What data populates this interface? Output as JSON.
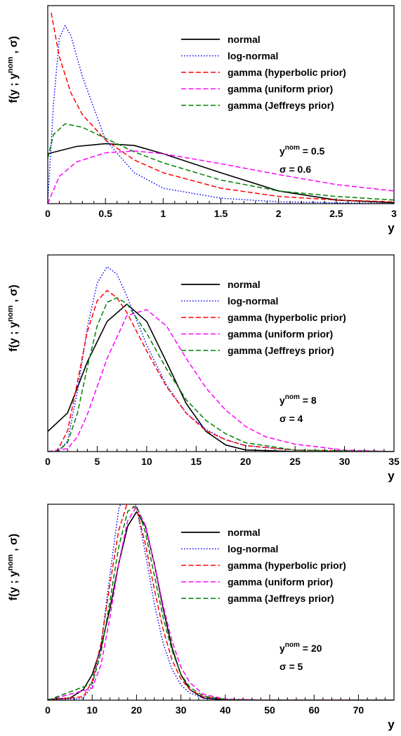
{
  "page": {
    "ylabel_main": "f(y ; y",
    "ylabel_sup": "nom",
    "ylabel_tail": ", σ)"
  },
  "panels": [
    {
      "xlim": [
        0,
        3
      ],
      "xticks": [
        0,
        0.5,
        1,
        1.5,
        2,
        2.5,
        3
      ],
      "xtick_labels": [
        "0",
        "0.5",
        "1",
        "1.5",
        "2",
        "2.5",
        "3"
      ],
      "xlabel": "y",
      "params": {
        "ynom_label": "y",
        "ynom_sup": "nom",
        "ynom_text": " = 0.5",
        "sigma_text": "σ = 0.6"
      }
    },
    {
      "xlim": [
        0,
        35
      ],
      "xticks": [
        0,
        5,
        10,
        15,
        20,
        25,
        30,
        35
      ],
      "xtick_labels": [
        "0",
        "5",
        "10",
        "15",
        "20",
        "25",
        "30",
        "35"
      ],
      "xlabel": "y",
      "params": {
        "ynom_label": "y",
        "ynom_sup": "nom",
        "ynom_text": " = 8",
        "sigma_text": "σ = 4"
      }
    },
    {
      "xlim": [
        0,
        78
      ],
      "xticks": [
        0,
        10,
        20,
        30,
        40,
        50,
        60,
        70
      ],
      "xtick_labels": [
        "0",
        "10",
        "20",
        "30",
        "40",
        "50",
        "60",
        "70"
      ],
      "xlabel": "y",
      "params": {
        "ynom_label": "y",
        "ynom_sup": "nom",
        "ynom_text": " = 20",
        "sigma_text": "σ = 5"
      }
    }
  ],
  "chart_data": [
    {
      "type": "line",
      "xlim": [
        0,
        3
      ],
      "ynom": 0.5,
      "sigma": 0.6,
      "series": [
        {
          "name": "normal",
          "color": "#000000",
          "dash": "solid",
          "x": [
            0,
            0.25,
            0.5,
            0.75,
            1,
            1.5,
            2,
            2.5,
            3
          ],
          "y": [
            0.55,
            0.63,
            0.66,
            0.64,
            0.55,
            0.34,
            0.14,
            0.04,
            0.01
          ]
        },
        {
          "name": "log-normal",
          "color": "#0000ff",
          "dash": "dotted",
          "x": [
            0,
            0.05,
            0.1,
            0.15,
            0.2,
            0.3,
            0.5,
            0.75,
            1,
            1.5,
            2,
            3
          ],
          "y": [
            0.02,
            1.1,
            1.82,
            1.96,
            1.85,
            1.4,
            0.7,
            0.34,
            0.17,
            0.06,
            0.02,
            0.0
          ]
        },
        {
          "name": "gamma (hyperbolic prior)",
          "color": "#ff0000",
          "dash": "dashed",
          "x": [
            0.03,
            0.1,
            0.2,
            0.3,
            0.5,
            0.75,
            1,
            1.5,
            2,
            2.5,
            3
          ],
          "y": [
            2.1,
            1.62,
            1.22,
            0.98,
            0.7,
            0.48,
            0.34,
            0.17,
            0.08,
            0.04,
            0.02
          ]
        },
        {
          "name": "gamma (uniform prior)",
          "color": "#ff00ff",
          "dash": "dashed",
          "x": [
            0,
            0.1,
            0.25,
            0.5,
            0.75,
            1,
            1.5,
            2,
            2.5,
            3
          ],
          "y": [
            0.0,
            0.3,
            0.46,
            0.56,
            0.58,
            0.55,
            0.44,
            0.32,
            0.21,
            0.14
          ]
        },
        {
          "name": "gamma (Jeffreys prior)",
          "color": "#008000",
          "dash": "dashed",
          "x": [
            0,
            0.05,
            0.15,
            0.3,
            0.5,
            0.75,
            1,
            1.5,
            2,
            2.5,
            3
          ],
          "y": [
            0.5,
            0.76,
            0.88,
            0.84,
            0.72,
            0.57,
            0.45,
            0.26,
            0.14,
            0.08,
            0.04
          ]
        }
      ]
    },
    {
      "type": "line",
      "xlim": [
        0,
        35
      ],
      "ynom": 8,
      "sigma": 4,
      "series": [
        {
          "name": "normal",
          "color": "#000000",
          "dash": "solid",
          "x": [
            0,
            2,
            4,
            6,
            8,
            10,
            12,
            14,
            16,
            18,
            20,
            25,
            35
          ],
          "y": [
            0.0136,
            0.0261,
            0.0606,
            0.088,
            0.0997,
            0.088,
            0.0606,
            0.0325,
            0.0136,
            0.0044,
            0.0011,
            0.0,
            0.0
          ]
        },
        {
          "name": "log-normal",
          "color": "#0000ff",
          "dash": "dotted",
          "x": [
            0,
            1,
            2,
            3,
            4,
            5,
            6,
            7,
            8,
            10,
            12,
            14,
            16,
            18,
            20,
            25,
            35
          ],
          "y": [
            0.0,
            0.0,
            0.007,
            0.041,
            0.084,
            0.114,
            0.125,
            0.12,
            0.105,
            0.072,
            0.045,
            0.026,
            0.015,
            0.008,
            0.004,
            0.001,
            0.0
          ]
        },
        {
          "name": "gamma (hyperbolic prior)",
          "color": "#ff0000",
          "dash": "dashed",
          "x": [
            0,
            1,
            2,
            3,
            4,
            5,
            6,
            7,
            8,
            10,
            12,
            14,
            16,
            18,
            20,
            25,
            35
          ],
          "y": [
            0.0,
            0.001,
            0.014,
            0.047,
            0.081,
            0.102,
            0.109,
            0.104,
            0.094,
            0.068,
            0.044,
            0.026,
            0.014,
            0.008,
            0.004,
            0.001,
            0.0
          ]
        },
        {
          "name": "gamma (uniform prior)",
          "color": "#ff00ff",
          "dash": "dashed",
          "x": [
            0,
            2,
            3,
            4,
            6,
            8,
            10,
            12,
            14,
            16,
            18,
            20,
            22,
            25,
            30,
            35
          ],
          "y": [
            0.0,
            0.002,
            0.01,
            0.025,
            0.063,
            0.092,
            0.096,
            0.085,
            0.063,
            0.043,
            0.028,
            0.017,
            0.01,
            0.005,
            0.001,
            0.0
          ]
        },
        {
          "name": "gamma (Jeffreys prior)",
          "color": "#008000",
          "dash": "dashed",
          "x": [
            0,
            1,
            2,
            3,
            4,
            5,
            6,
            7,
            8,
            10,
            12,
            14,
            16,
            18,
            20,
            25,
            35
          ],
          "y": [
            0.0,
            0.0,
            0.006,
            0.026,
            0.057,
            0.085,
            0.101,
            0.104,
            0.1,
            0.08,
            0.056,
            0.035,
            0.021,
            0.012,
            0.006,
            0.001,
            0.0
          ]
        }
      ]
    },
    {
      "type": "line",
      "xlim": [
        0,
        78
      ],
      "ynom": 20,
      "sigma": 5,
      "series": [
        {
          "name": "normal",
          "color": "#000000",
          "dash": "solid",
          "x": [
            0,
            5,
            8,
            10,
            12,
            14,
            16,
            18,
            20,
            22,
            24,
            26,
            28,
            30,
            32,
            35,
            40,
            78
          ],
          "y": [
            0.0003,
            0.0009,
            0.0045,
            0.0108,
            0.0222,
            0.0388,
            0.0579,
            0.0737,
            0.0798,
            0.0737,
            0.0579,
            0.0388,
            0.0222,
            0.0108,
            0.0045,
            0.0009,
            0.0001,
            0.0
          ]
        },
        {
          "name": "log-normal",
          "color": "#0000ff",
          "dash": "dotted",
          "x": [
            0,
            8,
            10,
            12,
            14,
            16,
            18,
            20,
            22,
            24,
            26,
            28,
            30,
            32,
            35,
            40,
            50,
            78
          ],
          "y": [
            0.0,
            0.0008,
            0.006,
            0.023,
            0.053,
            0.081,
            0.091,
            0.082,
            0.062,
            0.041,
            0.024,
            0.013,
            0.0065,
            0.003,
            0.001,
            0.0002,
            0.0,
            0.0
          ]
        },
        {
          "name": "gamma (hyperbolic prior)",
          "color": "#ff0000",
          "dash": "dashed",
          "x": [
            0,
            8,
            10,
            12,
            14,
            16,
            18,
            20,
            22,
            24,
            26,
            28,
            30,
            32,
            35,
            40,
            50,
            78
          ],
          "y": [
            0.0,
            0.0015,
            0.008,
            0.024,
            0.049,
            0.072,
            0.084,
            0.081,
            0.066,
            0.047,
            0.03,
            0.017,
            0.009,
            0.0045,
            0.0015,
            0.0003,
            0.0,
            0.0
          ]
        },
        {
          "name": "gamma (uniform prior)",
          "color": "#ff00ff",
          "dash": "dashed",
          "x": [
            0,
            10,
            12,
            14,
            16,
            18,
            20,
            22,
            24,
            26,
            28,
            30,
            32,
            35,
            40,
            50,
            78
          ],
          "y": [
            0.0,
            0.005,
            0.015,
            0.035,
            0.058,
            0.076,
            0.082,
            0.074,
            0.058,
            0.04,
            0.025,
            0.014,
            0.0075,
            0.0025,
            0.0005,
            0.0,
            0.0
          ]
        },
        {
          "name": "gamma (Jeffreys prior)",
          "color": "#008000",
          "dash": "dashed",
          "x": [
            0,
            10,
            12,
            14,
            16,
            18,
            20,
            22,
            24,
            26,
            28,
            30,
            32,
            35,
            40,
            50,
            78
          ],
          "y": [
            0.0,
            0.007,
            0.02,
            0.042,
            0.065,
            0.08,
            0.0825,
            0.071,
            0.053,
            0.035,
            0.021,
            0.011,
            0.0055,
            0.0018,
            0.0003,
            0.0,
            0.0
          ]
        }
      ]
    }
  ]
}
